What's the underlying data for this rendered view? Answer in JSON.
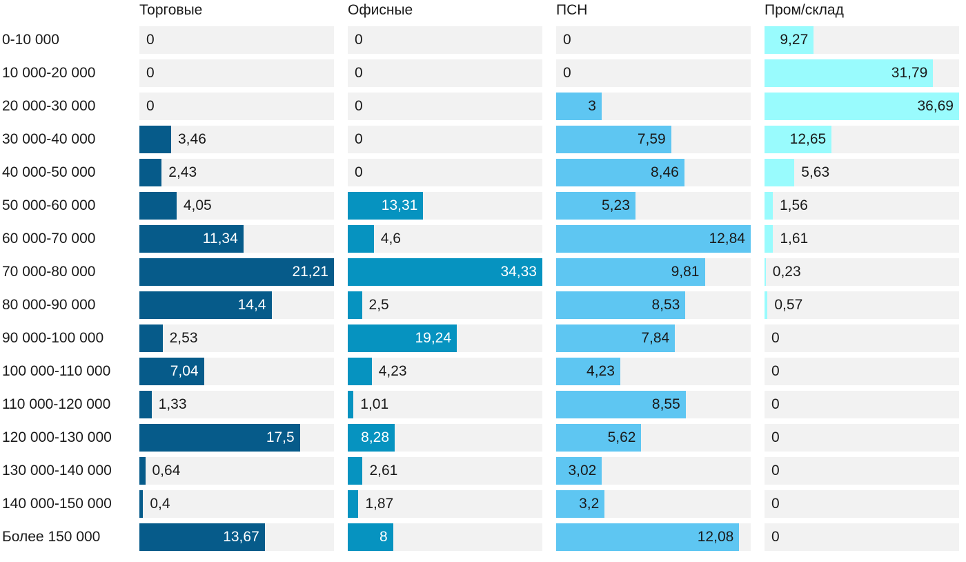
{
  "chart_data": {
    "type": "bar",
    "orientation": "horizontal",
    "layout": "small-multiples",
    "categories": [
      "0-10 000",
      "10 000-20 000",
      "20 000-30 000",
      "30 000-40 000",
      "40 000-50 000",
      "50 000-60 000",
      "60 000-70 000",
      "70 000-80 000",
      "80 000-90 000",
      "90 000-100 000",
      "100 000-110 000",
      "110 000-120 000",
      "120 000-130 000",
      "130 000-140 000",
      "140 000-150 000",
      "Более 150 000"
    ],
    "series": [
      {
        "name": "Торговые",
        "color": "#065b8a",
        "label_color_inside": "#ffffff",
        "values": [
          0,
          0,
          0,
          3.46,
          2.43,
          4.05,
          11.34,
          21.21,
          14.4,
          2.53,
          7.04,
          1.33,
          17.5,
          0.64,
          0.4,
          13.67
        ],
        "labels": [
          "0",
          "0",
          "0",
          "3,46",
          "2,43",
          "4,05",
          "11,34",
          "21,21",
          "14,4",
          "2,53",
          "7,04",
          "1,33",
          "17,5",
          "0,64",
          "0,4",
          "13,67"
        ]
      },
      {
        "name": "Офисные",
        "color": "#0693c0",
        "label_color_inside": "#ffffff",
        "values": [
          0,
          0,
          0,
          0,
          0,
          13.31,
          4.6,
          34.33,
          2.5,
          19.24,
          4.23,
          1.01,
          8.28,
          2.61,
          1.87,
          8
        ],
        "labels": [
          "0",
          "0",
          "0",
          "0",
          "0",
          "13,31",
          "4,6",
          "34,33",
          "2,5",
          "19,24",
          "4,23",
          "1,01",
          "8,28",
          "2,61",
          "1,87",
          "8"
        ]
      },
      {
        "name": "ПСН",
        "color": "#5ec6f2",
        "label_color_inside": "#1a1a1a",
        "values": [
          0,
          0,
          3,
          7.59,
          8.46,
          5.23,
          12.84,
          9.81,
          8.53,
          7.84,
          4.23,
          8.55,
          5.62,
          3.02,
          3.2,
          12.08
        ],
        "labels": [
          "0",
          "0",
          "3",
          "7,59",
          "8,46",
          "5,23",
          "12,84",
          "9,81",
          "8,53",
          "7,84",
          "4,23",
          "8,55",
          "5,62",
          "3,02",
          "3,2",
          "12,08"
        ]
      },
      {
        "name": "Пром/склад",
        "color": "#99fbfd",
        "label_color_inside": "#1a1a1a",
        "values": [
          9.27,
          31.79,
          36.69,
          12.65,
          5.63,
          1.56,
          1.61,
          0.23,
          0.57,
          0,
          0,
          0,
          0,
          0,
          0,
          0
        ],
        "labels": [
          "9,27",
          "31,79",
          "36,69",
          "12,65",
          "5,63",
          "1,56",
          "1,61",
          "0,23",
          "0,57",
          "0",
          "0",
          "0",
          "0",
          "0",
          "0",
          "0"
        ]
      }
    ],
    "panel_max": [
      21.21,
      34.33,
      12.84,
      36.69
    ],
    "title": "",
    "xlabel": "",
    "ylabel": "",
    "grid": false,
    "legend": "none"
  }
}
